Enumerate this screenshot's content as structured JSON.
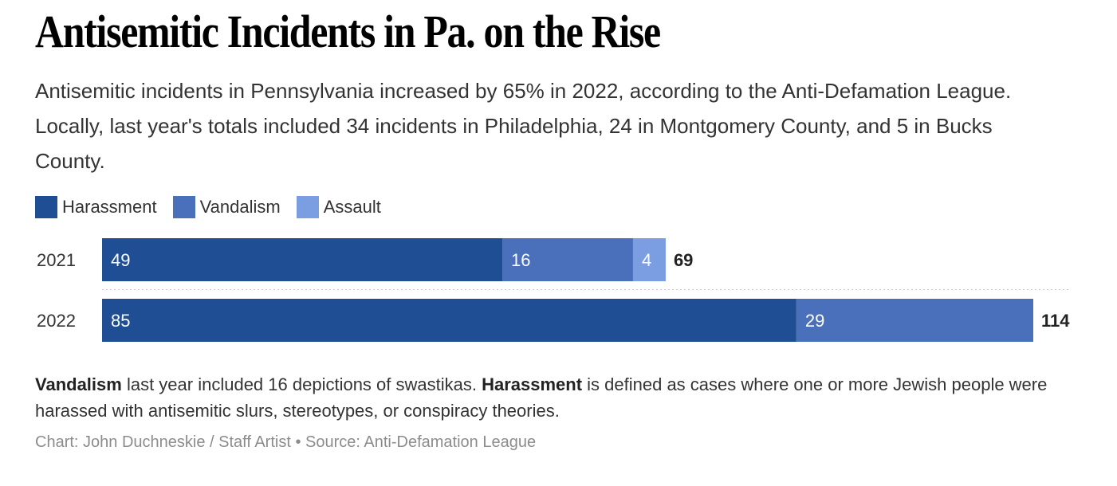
{
  "title": "Antisemitic Incidents in Pa. on the Rise",
  "subtitle": "Antisemitic incidents in Pennsylvania increased by 65% in 2022, according to the Anti-Defamation League. Locally, last year's totals included 34 incidents in Philadelphia, 24 in Montgomery County, and 5 in Bucks County.",
  "legend": [
    {
      "label": "Harassment",
      "color": "#1f4e94"
    },
    {
      "label": "Vandalism",
      "color": "#4a70bb"
    },
    {
      "label": "Assault",
      "color": "#7b9ee3"
    }
  ],
  "chart_data": {
    "type": "bar",
    "orientation": "horizontal",
    "stacked": true,
    "categories": [
      "2021",
      "2022"
    ],
    "series": [
      {
        "name": "Harassment",
        "values": [
          49,
          85
        ],
        "color": "#1f4e94"
      },
      {
        "name": "Vandalism",
        "values": [
          16,
          29
        ],
        "color": "#4a70bb"
      },
      {
        "name": "Assault",
        "values": [
          4,
          0
        ],
        "color": "#7b9ee3"
      }
    ],
    "totals": [
      69,
      114
    ],
    "xlim": [
      0,
      114
    ],
    "grid": false,
    "legend_position": "top-left"
  },
  "note": {
    "term1": "Vandalism",
    "text1": " last year included 16 depictions of swastikas. ",
    "term2": "Harassment",
    "text2": " is defined as cases where one or more Jewish people were harassed with antisemitic slurs, stereotypes, or conspiracy theories."
  },
  "credit": "Chart: John Duchneskie / Staff Artist • Source: Anti-Defamation League"
}
